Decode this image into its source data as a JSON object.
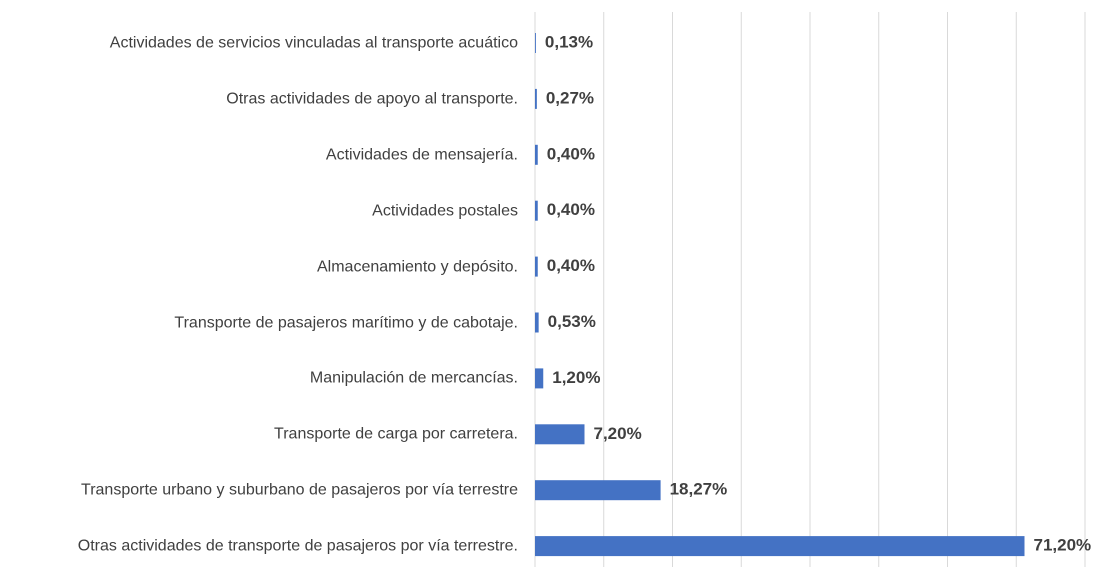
{
  "chart_data": {
    "type": "bar",
    "orientation": "horizontal",
    "categories": [
      "Actividades de servicios vinculadas al transporte acuático",
      "Otras actividades de apoyo al transporte.",
      "Actividades de mensajería.",
      "Actividades postales",
      "Almacenamiento y depósito.",
      "Transporte de pasajeros marítimo y de cabotaje.",
      "Manipulación de mercancías.",
      "Transporte de carga por carretera.",
      "Transporte urbano y suburbano de pasajeros por vía terrestre",
      "Otras actividades de transporte de pasajeros por vía terrestre."
    ],
    "values": [
      0.13,
      0.27,
      0.4,
      0.4,
      0.4,
      0.53,
      1.2,
      7.2,
      18.27,
      71.2
    ],
    "value_labels": [
      "0,13%",
      "0,27%",
      "0,40%",
      "0,40%",
      "0,40%",
      "0,53%",
      "1,20%",
      "7,20%",
      "18,27%",
      "71,20%"
    ],
    "color": "#4472c4",
    "xlim": [
      0,
      80
    ],
    "xticks": [
      0,
      10,
      20,
      30,
      40,
      50,
      60,
      70,
      80
    ],
    "grid": true
  }
}
